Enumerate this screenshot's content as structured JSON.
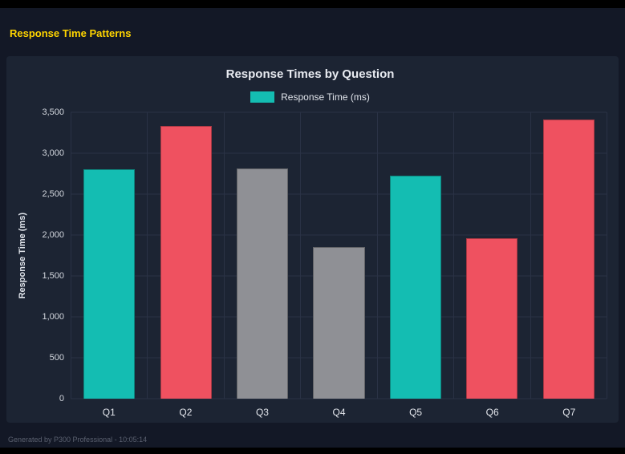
{
  "page": {
    "title": "Response Time Patterns"
  },
  "footer": {
    "text": "Generated by P300 Professional - 10:05:14"
  },
  "colors": {
    "accent_title": "#ffd400",
    "teal": "#14bdb2",
    "red": "#ef5160",
    "gray": "#8f9095",
    "panel_bg": "#1c2433",
    "page_bg": "#131826",
    "grid": "#2a3245"
  },
  "chart_data": {
    "type": "bar",
    "title": "Response Times by Question",
    "legend": "Response Time (ms)",
    "xlabel": "",
    "ylabel": "Response Time (ms)",
    "categories": [
      "Q1",
      "Q2",
      "Q3",
      "Q4",
      "Q5",
      "Q6",
      "Q7"
    ],
    "values": [
      2800,
      3330,
      2810,
      1850,
      2730,
      1960,
      3410
    ],
    "bar_colors": [
      "#14bdb2",
      "#ef5160",
      "#8f9095",
      "#8f9095",
      "#14bdb2",
      "#ef5160",
      "#ef5160"
    ],
    "ylim": [
      0,
      3500
    ],
    "ytick_step": 500,
    "ytick_labels": [
      "0",
      "500",
      "1,000",
      "1,500",
      "2,000",
      "2,500",
      "3,000",
      "3,500"
    ],
    "grid": true,
    "legend_position": "top"
  }
}
